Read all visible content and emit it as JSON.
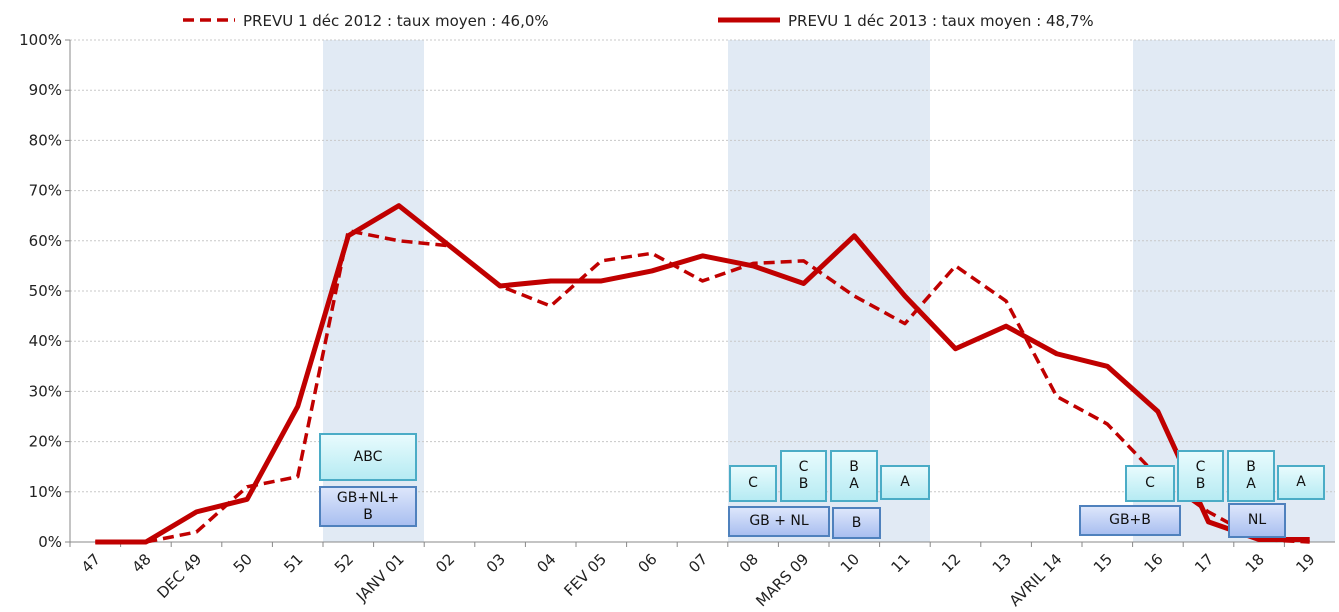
{
  "chart_data": {
    "type": "line",
    "categories": [
      "47",
      "48",
      "DEC 49",
      "50",
      "51",
      "52",
      "JANV 01",
      "02",
      "03",
      "04",
      "FEV 05",
      "06",
      "07",
      "08",
      "MARS 09",
      "10",
      "11",
      "12",
      "13",
      "AVRIL 14",
      "15",
      "16",
      "17",
      "18",
      "19"
    ],
    "series": [
      {
        "name": "PREVU 1 déc 2012 : taux moyen : 46,0%",
        "color": "#c00000",
        "style": "dashed",
        "values": [
          0,
          0,
          2,
          11,
          13,
          62,
          60,
          59,
          51,
          47,
          56,
          57.5,
          52,
          55.5,
          56,
          49,
          43.5,
          55,
          48,
          29,
          23.5,
          13,
          6,
          0.5,
          0
        ]
      },
      {
        "name": "PREVU 1 déc 2013 : taux moyen : 48,7%",
        "color": "#c00000",
        "style": "solid",
        "values": [
          0,
          0,
          6,
          8.5,
          27,
          61,
          67,
          59,
          51,
          52,
          52,
          54,
          57,
          55,
          51.5,
          61,
          49,
          38.5,
          43,
          37.5,
          35,
          26,
          4,
          0.5,
          0.5
        ]
      }
    ],
    "ylim": [
      0,
      100
    ],
    "yticks": [
      {
        "value": 0,
        "label": "0%"
      },
      {
        "value": 10,
        "label": "10%"
      },
      {
        "value": 20,
        "label": "20%"
      },
      {
        "value": 30,
        "label": "30%"
      },
      {
        "value": 40,
        "label": "40%"
      },
      {
        "value": 50,
        "label": "50%"
      },
      {
        "value": 60,
        "label": "60%"
      },
      {
        "value": 70,
        "label": "70%"
      },
      {
        "value": 80,
        "label": "80%"
      },
      {
        "value": 90,
        "label": "90%"
      },
      {
        "value": 100,
        "label": "100%"
      }
    ],
    "grid": true,
    "legend": "top",
    "annotations": [
      "ABC",
      "GB+NL+\nB",
      "C",
      "C\nB",
      "B\nA",
      "A",
      "GB + NL",
      "B",
      "C",
      "C\nB",
      "B\nA",
      "A",
      "GB+B",
      "NL"
    ]
  }
}
